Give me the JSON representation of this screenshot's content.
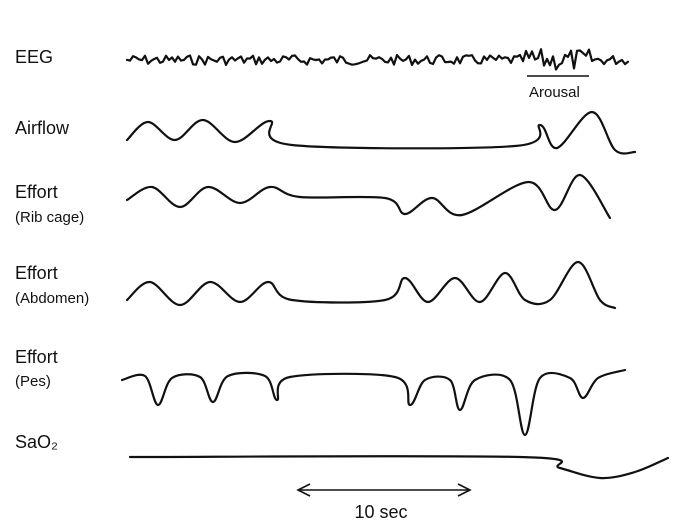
{
  "traces": [
    {
      "label": "EEG",
      "annotation": "Arousal"
    },
    {
      "label": "Airflow"
    },
    {
      "label": "Effort",
      "sublabel": "(Rib cage)"
    },
    {
      "label": "Effort",
      "sublabel": "(Abdomen)"
    },
    {
      "label": "Effort",
      "sublabel": "(Pes)"
    },
    {
      "label": "SaO₂"
    }
  ],
  "scale_bar": "10 sec"
}
